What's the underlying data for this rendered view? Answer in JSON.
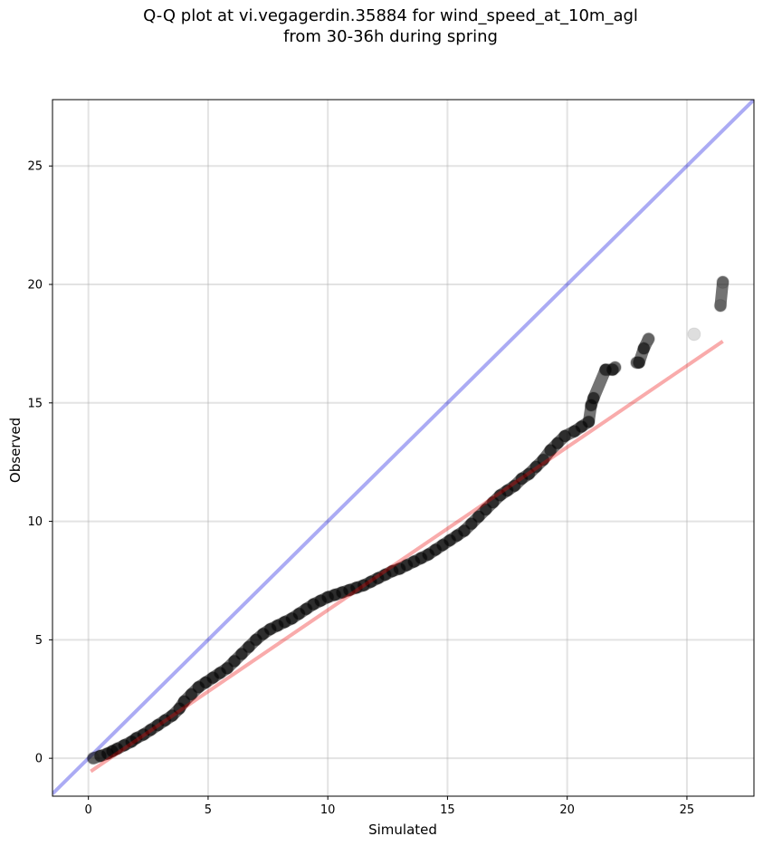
{
  "chart_data": {
    "type": "scatter",
    "title": "Q-Q plot at vi.vegagerdin.35884 for wind_speed_at_10m_agl",
    "subtitle": "from 30-36h during spring",
    "xlabel": "Simulated",
    "ylabel": "Observed",
    "xlim": [
      -1.5,
      27.8
    ],
    "ylim": [
      -1.6,
      27.8
    ],
    "xticks": [
      0,
      5,
      10,
      15,
      20,
      25
    ],
    "yticks": [
      0,
      5,
      10,
      15,
      20,
      25
    ],
    "grid": true,
    "identity_line": {
      "x": [
        -1.5,
        27.8
      ],
      "y": [
        -1.5,
        27.8
      ],
      "color": "#0000dd"
    },
    "fit_line": {
      "x": [
        0.1,
        26.5
      ],
      "y": [
        -0.55,
        17.6
      ],
      "color": "#ee0000"
    },
    "points_color": "#000000",
    "points": {
      "x": [
        0.2,
        0.5,
        0.8,
        1.0,
        1.2,
        1.5,
        1.8,
        2.0,
        2.3,
        2.6,
        2.9,
        3.2,
        3.5,
        3.8,
        4.0,
        4.3,
        4.6,
        4.9,
        5.2,
        5.5,
        5.8,
        6.1,
        6.4,
        6.7,
        7.0,
        7.3,
        7.6,
        7.9,
        8.2,
        8.5,
        8.8,
        9.1,
        9.4,
        9.7,
        10.0,
        10.3,
        10.6,
        10.9,
        11.2,
        11.5,
        11.8,
        12.1,
        12.4,
        12.7,
        13.0,
        13.3,
        13.6,
        13.9,
        14.2,
        14.5,
        14.8,
        15.1,
        15.4,
        15.7,
        16.0,
        16.3,
        16.6,
        16.9,
        17.2,
        17.5,
        17.8,
        18.1,
        18.4,
        18.7,
        19.0,
        19.3,
        19.6,
        19.9,
        20.3,
        20.6,
        20.9,
        21.0,
        21.1,
        21.6,
        21.9,
        22.0,
        22.9,
        23.0,
        23.2,
        23.4,
        25.3,
        26.4,
        26.5
      ],
      "y": [
        0.0,
        0.1,
        0.2,
        0.3,
        0.4,
        0.55,
        0.7,
        0.85,
        1.0,
        1.2,
        1.4,
        1.6,
        1.8,
        2.1,
        2.4,
        2.7,
        3.0,
        3.2,
        3.4,
        3.6,
        3.8,
        4.1,
        4.4,
        4.7,
        5.0,
        5.25,
        5.45,
        5.6,
        5.75,
        5.9,
        6.1,
        6.3,
        6.5,
        6.65,
        6.8,
        6.9,
        7.0,
        7.1,
        7.2,
        7.3,
        7.45,
        7.6,
        7.75,
        7.9,
        8.0,
        8.15,
        8.3,
        8.45,
        8.6,
        8.8,
        9.0,
        9.2,
        9.4,
        9.6,
        9.9,
        10.2,
        10.5,
        10.8,
        11.1,
        11.3,
        11.5,
        11.8,
        12.0,
        12.3,
        12.6,
        13.0,
        13.3,
        13.6,
        13.8,
        14.0,
        14.2,
        14.9,
        15.2,
        16.4,
        16.4,
        16.5,
        16.7,
        16.7,
        17.3,
        17.7,
        17.9,
        19.1,
        20.1
      ]
    }
  }
}
